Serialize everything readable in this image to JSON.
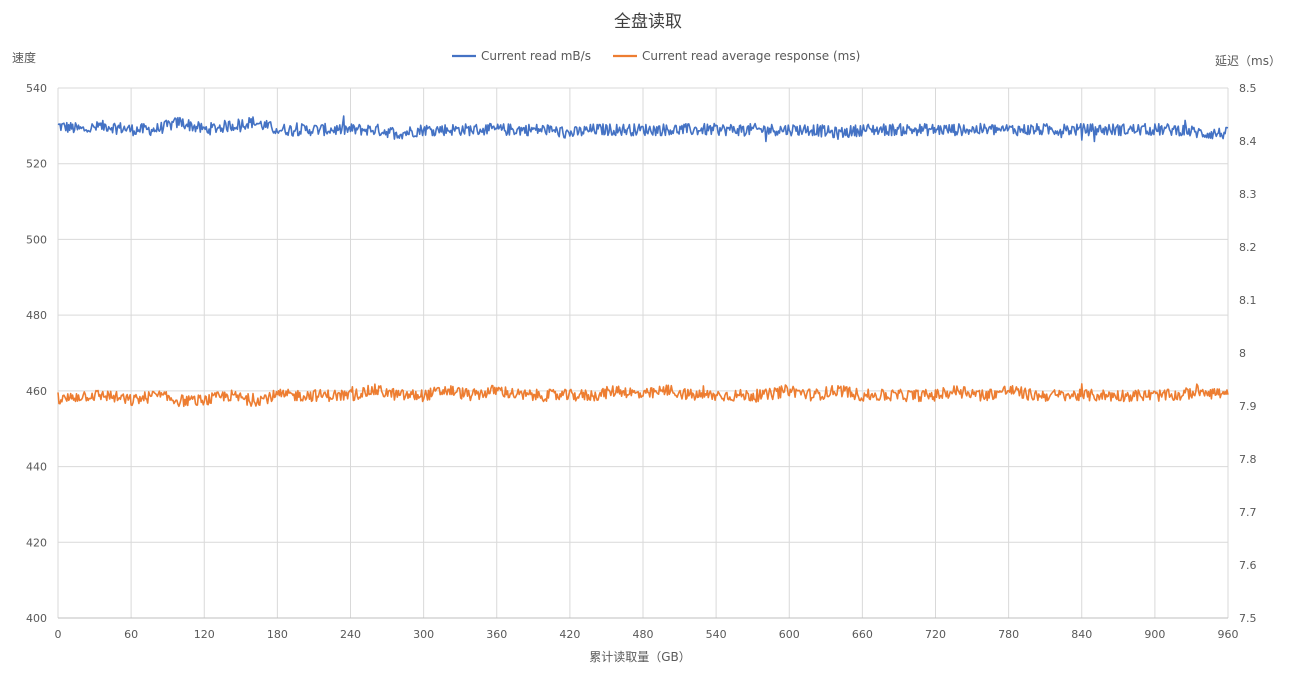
{
  "chart_data": {
    "type": "line",
    "title": "全盘读取",
    "xlabel": "累计读取量（GB）",
    "ylabel_left": "速度",
    "ylabel_right": "延迟（ms）",
    "x_ticks": [
      0,
      60,
      120,
      180,
      240,
      300,
      360,
      420,
      480,
      540,
      600,
      660,
      720,
      780,
      840,
      900,
      960
    ],
    "xlim": [
      0,
      960
    ],
    "ylim_left": [
      400,
      540
    ],
    "y_ticks_left": [
      400,
      420,
      440,
      460,
      480,
      500,
      520,
      540
    ],
    "ylim_right": [
      7.5,
      8.5
    ],
    "y_ticks_right": [
      "7.5",
      "7.6",
      "7.7",
      "7.8",
      "7.9",
      "8",
      "8.1",
      "8.2",
      "8.3",
      "8.4",
      "8.5"
    ],
    "grid": true,
    "legend_position": "top-center",
    "series": [
      {
        "name": "Current read mB/s",
        "axis": "left",
        "color": "#4472C4",
        "x": [
          0,
          20,
          40,
          60,
          80,
          100,
          120,
          140,
          160,
          180,
          200,
          220,
          240,
          260,
          280,
          300,
          320,
          340,
          360,
          380,
          400,
          420,
          440,
          460,
          480,
          500,
          520,
          540,
          560,
          580,
          600,
          620,
          640,
          660,
          680,
          700,
          720,
          740,
          760,
          780,
          800,
          820,
          840,
          860,
          880,
          900,
          920,
          940,
          960
        ],
        "y": [
          530,
          529,
          530,
          529,
          529,
          531,
          529,
          530,
          531,
          529,
          529,
          529,
          529,
          529,
          528,
          529,
          529,
          529,
          529,
          529,
          529,
          528,
          529,
          529,
          529,
          529,
          529,
          529,
          529,
          529,
          529,
          529,
          528,
          529,
          529,
          529,
          529,
          529,
          529,
          529,
          529,
          529,
          529,
          529,
          529,
          529,
          529,
          528,
          528
        ]
      },
      {
        "name": "Current read average response (ms)",
        "axis": "right",
        "color": "#ED7D31",
        "x": [
          0,
          20,
          40,
          60,
          80,
          100,
          120,
          140,
          160,
          180,
          200,
          220,
          240,
          260,
          280,
          300,
          320,
          340,
          360,
          380,
          400,
          420,
          440,
          460,
          480,
          500,
          520,
          540,
          560,
          580,
          600,
          620,
          640,
          660,
          680,
          700,
          720,
          740,
          760,
          780,
          800,
          820,
          840,
          860,
          880,
          900,
          920,
          940,
          960
        ],
        "y": [
          7.91,
          7.92,
          7.92,
          7.91,
          7.92,
          7.91,
          7.91,
          7.92,
          7.91,
          7.92,
          7.92,
          7.92,
          7.92,
          7.93,
          7.92,
          7.92,
          7.93,
          7.92,
          7.93,
          7.92,
          7.92,
          7.92,
          7.92,
          7.93,
          7.92,
          7.93,
          7.92,
          7.92,
          7.92,
          7.92,
          7.93,
          7.92,
          7.93,
          7.92,
          7.92,
          7.92,
          7.92,
          7.93,
          7.92,
          7.93,
          7.92,
          7.92,
          7.92,
          7.92,
          7.92,
          7.92,
          7.92,
          7.93,
          7.92
        ]
      }
    ]
  }
}
